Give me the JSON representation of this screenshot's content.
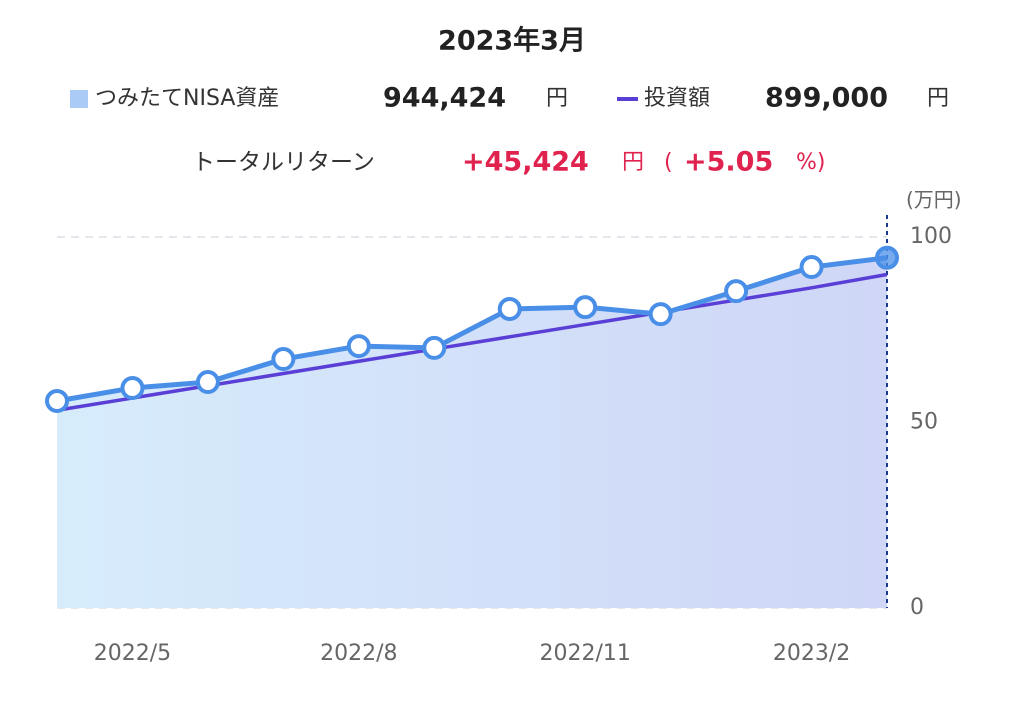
{
  "chart_data": {
    "type": "line",
    "title": "2023年3月",
    "summary": {
      "asset_label": "つみたてNISA資産",
      "asset_value": "944,424",
      "asset_unit": "円",
      "invest_label": "投資額",
      "invest_value": "899,000",
      "invest_unit": "円",
      "return_label": "トータルリターン",
      "return_value": "+45,424",
      "return_unit": "円",
      "paren_open": "(",
      "return_pct": "+5.05",
      "paren_close": "%)"
    },
    "y_unit": "(万円)",
    "categories": [
      null,
      "2022/5",
      null,
      null,
      "2022/8",
      null,
      null,
      "2022/11",
      null,
      null,
      "2023/2",
      null
    ],
    "series": [
      {
        "name": "つみたてNISA資産",
        "color": "#4a8fe7",
        "values": [
          55.8,
          59.3,
          60.9,
          67.1,
          70.6,
          70.1,
          80.6,
          81.1,
          79.2,
          85.4,
          91.9,
          94.4
        ]
      },
      {
        "name": "投資額",
        "color": "#5a3fd6",
        "values": [
          53.3,
          56.6,
          59.9,
          63.2,
          66.5,
          69.8,
          73.1,
          76.4,
          79.7,
          83.0,
          86.3,
          89.9
        ]
      }
    ],
    "ylim": [
      0,
      100
    ],
    "yticks": [
      0,
      50,
      100
    ],
    "grid": true
  }
}
